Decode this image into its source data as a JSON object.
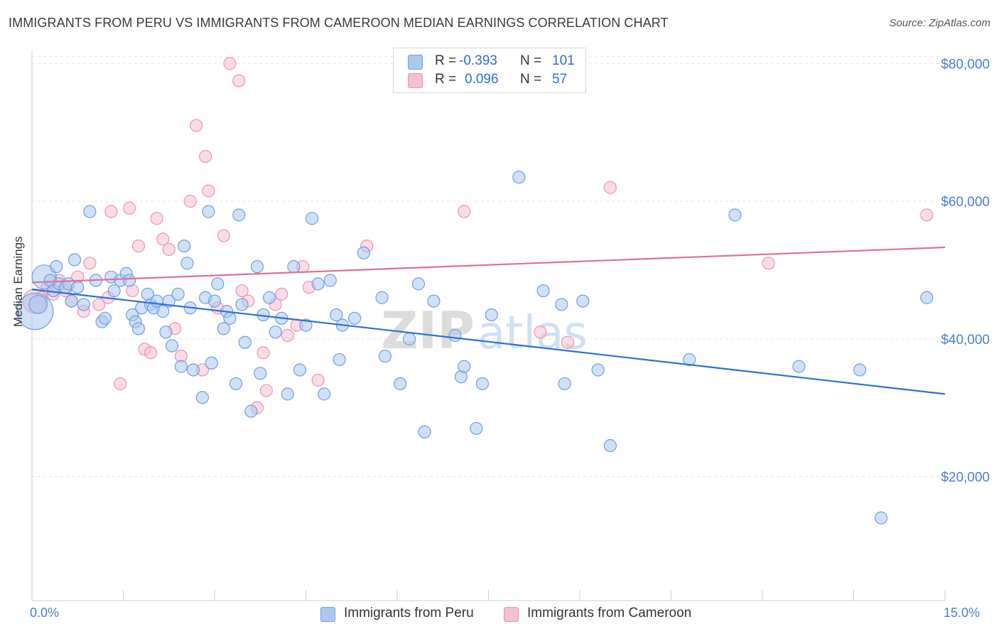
{
  "title": "IMMIGRANTS FROM PERU VS IMMIGRANTS FROM CAMEROON MEDIAN EARNINGS CORRELATION CHART",
  "source": "Source: ZipAtlas.com",
  "watermark": "ZIPatlas",
  "colors": {
    "peru_fill": "#aac8f0",
    "peru_stroke": "#6f9ee0",
    "peru_line": "#2f6fd6",
    "cameroon_fill": "#f6bfd2",
    "cameroon_stroke": "#ec93b3",
    "cameroon_line": "#e0709a",
    "axis_text": "#4a7fd0",
    "grid": "#e2e2e2"
  },
  "legend_top": {
    "rows": [
      {
        "r_label": "R =",
        "r_value": "-0.393",
        "n_label": "N =",
        "n_value": "101"
      },
      {
        "r_label": "R =",
        "r_value": "0.096",
        "n_label": "N =",
        "n_value": "57"
      }
    ]
  },
  "legend_bottom": [
    "Immigrants from Peru",
    "Immigrants from Cameroon"
  ],
  "chart_data": {
    "type": "scatter",
    "ylabel": "Median Earnings",
    "xlim": [
      0,
      15
    ],
    "ylim": [
      2000,
      82000
    ],
    "x_tick_labels": [
      "0.0%",
      "15.0%"
    ],
    "y_ticks": [
      20000,
      40000,
      60000,
      80000
    ],
    "y_tick_labels": [
      "$20,000",
      "$40,000",
      "$60,000",
      "$80,000"
    ],
    "grid": true,
    "series": [
      {
        "name": "Immigrants from Peru",
        "trend": {
          "x": [
            0,
            15
          ],
          "y": [
            47200,
            32000
          ]
        },
        "points": [
          [
            0.05,
            44000,
            3
          ],
          [
            0.1,
            45000,
            1.5
          ],
          [
            0.2,
            49000,
            2
          ],
          [
            0.3,
            48500,
            1
          ],
          [
            0.35,
            47000,
            1
          ],
          [
            0.4,
            50500,
            1
          ],
          [
            0.45,
            48000,
            1
          ],
          [
            0.55,
            47500,
            1
          ],
          [
            0.6,
            48000,
            1
          ],
          [
            0.65,
            45500,
            1
          ],
          [
            0.7,
            51500,
            1
          ],
          [
            0.75,
            47500,
            1
          ],
          [
            0.85,
            45000,
            1
          ],
          [
            0.95,
            58500,
            1
          ],
          [
            1.05,
            48500,
            1
          ],
          [
            1.15,
            42500,
            1
          ],
          [
            1.2,
            43000,
            1
          ],
          [
            1.3,
            49000,
            1
          ],
          [
            1.35,
            47000,
            1
          ],
          [
            1.45,
            48500,
            1
          ],
          [
            1.55,
            49500,
            1
          ],
          [
            1.6,
            48500,
            1
          ],
          [
            1.65,
            43500,
            1
          ],
          [
            1.7,
            42500,
            1
          ],
          [
            1.75,
            41500,
            1
          ],
          [
            1.8,
            44500,
            1
          ],
          [
            1.9,
            46500,
            1
          ],
          [
            1.95,
            45000,
            1
          ],
          [
            2.0,
            44500,
            1
          ],
          [
            2.05,
            45500,
            1
          ],
          [
            2.15,
            44000,
            1
          ],
          [
            2.2,
            41000,
            1
          ],
          [
            2.25,
            45500,
            1
          ],
          [
            2.3,
            39000,
            1
          ],
          [
            2.4,
            46500,
            1
          ],
          [
            2.45,
            36000,
            1
          ],
          [
            2.5,
            53500,
            1
          ],
          [
            2.55,
            51000,
            1
          ],
          [
            2.6,
            44500,
            1
          ],
          [
            2.65,
            35500,
            1
          ],
          [
            2.8,
            31500,
            1
          ],
          [
            2.85,
            46000,
            1
          ],
          [
            2.9,
            58500,
            1
          ],
          [
            2.95,
            36500,
            1
          ],
          [
            3.0,
            45500,
            1
          ],
          [
            3.05,
            48000,
            1
          ],
          [
            3.15,
            41500,
            1
          ],
          [
            3.2,
            44000,
            1
          ],
          [
            3.25,
            43000,
            1
          ],
          [
            3.35,
            33500,
            1
          ],
          [
            3.4,
            58000,
            1
          ],
          [
            3.45,
            45000,
            1
          ],
          [
            3.5,
            39500,
            1
          ],
          [
            3.6,
            29500,
            1
          ],
          [
            3.7,
            50500,
            1
          ],
          [
            3.75,
            35000,
            1
          ],
          [
            3.8,
            43500,
            1
          ],
          [
            3.9,
            46000,
            1
          ],
          [
            4.0,
            41000,
            1
          ],
          [
            4.1,
            43000,
            1
          ],
          [
            4.2,
            32000,
            1
          ],
          [
            4.3,
            50500,
            1
          ],
          [
            4.4,
            35500,
            1
          ],
          [
            4.5,
            42000,
            1
          ],
          [
            4.6,
            57500,
            1
          ],
          [
            4.7,
            48000,
            1
          ],
          [
            4.8,
            32000,
            1
          ],
          [
            4.9,
            48500,
            1
          ],
          [
            5.0,
            43500,
            1
          ],
          [
            5.05,
            37000,
            1
          ],
          [
            5.1,
            42000,
            1
          ],
          [
            5.3,
            43000,
            1
          ],
          [
            5.45,
            52500,
            1
          ],
          [
            5.75,
            46000,
            1
          ],
          [
            5.8,
            37500,
            1
          ],
          [
            6.05,
            33500,
            1
          ],
          [
            6.2,
            40000,
            1
          ],
          [
            6.35,
            48000,
            1
          ],
          [
            6.45,
            26500,
            1
          ],
          [
            6.6,
            45500,
            1
          ],
          [
            6.95,
            40500,
            1
          ],
          [
            7.05,
            34500,
            1
          ],
          [
            7.1,
            36000,
            1
          ],
          [
            7.3,
            27000,
            1
          ],
          [
            7.4,
            33500,
            1
          ],
          [
            7.55,
            43500,
            1
          ],
          [
            8.0,
            63500,
            1
          ],
          [
            8.4,
            47000,
            1
          ],
          [
            8.7,
            45000,
            1
          ],
          [
            8.75,
            33500,
            1
          ],
          [
            9.05,
            45500,
            1
          ],
          [
            9.3,
            35500,
            1
          ],
          [
            9.5,
            24500,
            1
          ],
          [
            10.8,
            37000,
            1
          ],
          [
            11.55,
            58000,
            1
          ],
          [
            12.6,
            36000,
            1
          ],
          [
            13.6,
            35500,
            1
          ],
          [
            13.95,
            14000,
            1
          ],
          [
            14.7,
            46000,
            1
          ]
        ]
      },
      {
        "name": "Immigrants from Cameroon",
        "trend": {
          "x": [
            0,
            15
          ],
          "y": [
            48200,
            53300
          ]
        },
        "points": [
          [
            0.05,
            45500,
            2
          ],
          [
            0.15,
            46000,
            1
          ],
          [
            0.25,
            47500,
            1
          ],
          [
            0.35,
            46500,
            1
          ],
          [
            0.45,
            48500,
            1
          ],
          [
            0.55,
            47000,
            1
          ],
          [
            0.65,
            45500,
            1
          ],
          [
            0.75,
            49000,
            1
          ],
          [
            0.85,
            44000,
            1
          ],
          [
            0.95,
            51000,
            1
          ],
          [
            1.1,
            45000,
            1
          ],
          [
            1.25,
            46000,
            1
          ],
          [
            1.3,
            58500,
            1
          ],
          [
            1.45,
            33500,
            1
          ],
          [
            1.6,
            59000,
            1
          ],
          [
            1.65,
            47000,
            1
          ],
          [
            1.75,
            53500,
            1
          ],
          [
            1.85,
            38500,
            1
          ],
          [
            1.95,
            38000,
            1
          ],
          [
            2.05,
            57500,
            1
          ],
          [
            2.15,
            54500,
            1
          ],
          [
            2.25,
            53000,
            1
          ],
          [
            2.35,
            41500,
            1
          ],
          [
            2.45,
            37500,
            1
          ],
          [
            2.6,
            60000,
            1
          ],
          [
            2.7,
            71000,
            1
          ],
          [
            2.8,
            35500,
            1
          ],
          [
            2.85,
            66500,
            1
          ],
          [
            2.9,
            61500,
            1
          ],
          [
            3.05,
            44500,
            1
          ],
          [
            3.15,
            55000,
            1
          ],
          [
            3.25,
            80000,
            1
          ],
          [
            3.4,
            77500,
            1
          ],
          [
            3.45,
            47000,
            1
          ],
          [
            3.55,
            45500,
            1
          ],
          [
            3.7,
            30000,
            1
          ],
          [
            3.8,
            38000,
            1
          ],
          [
            3.85,
            32500,
            1
          ],
          [
            4.0,
            45000,
            1
          ],
          [
            4.1,
            46500,
            1
          ],
          [
            4.2,
            40500,
            1
          ],
          [
            4.35,
            42000,
            1
          ],
          [
            4.45,
            50500,
            1
          ],
          [
            4.55,
            47500,
            1
          ],
          [
            4.7,
            34000,
            1
          ],
          [
            5.5,
            53500,
            1
          ],
          [
            7.1,
            58500,
            1
          ],
          [
            8.35,
            41000,
            1
          ],
          [
            8.8,
            39500,
            1
          ],
          [
            9.5,
            62000,
            1
          ],
          [
            12.1,
            51000,
            1
          ],
          [
            14.7,
            58000,
            1
          ]
        ]
      }
    ]
  }
}
